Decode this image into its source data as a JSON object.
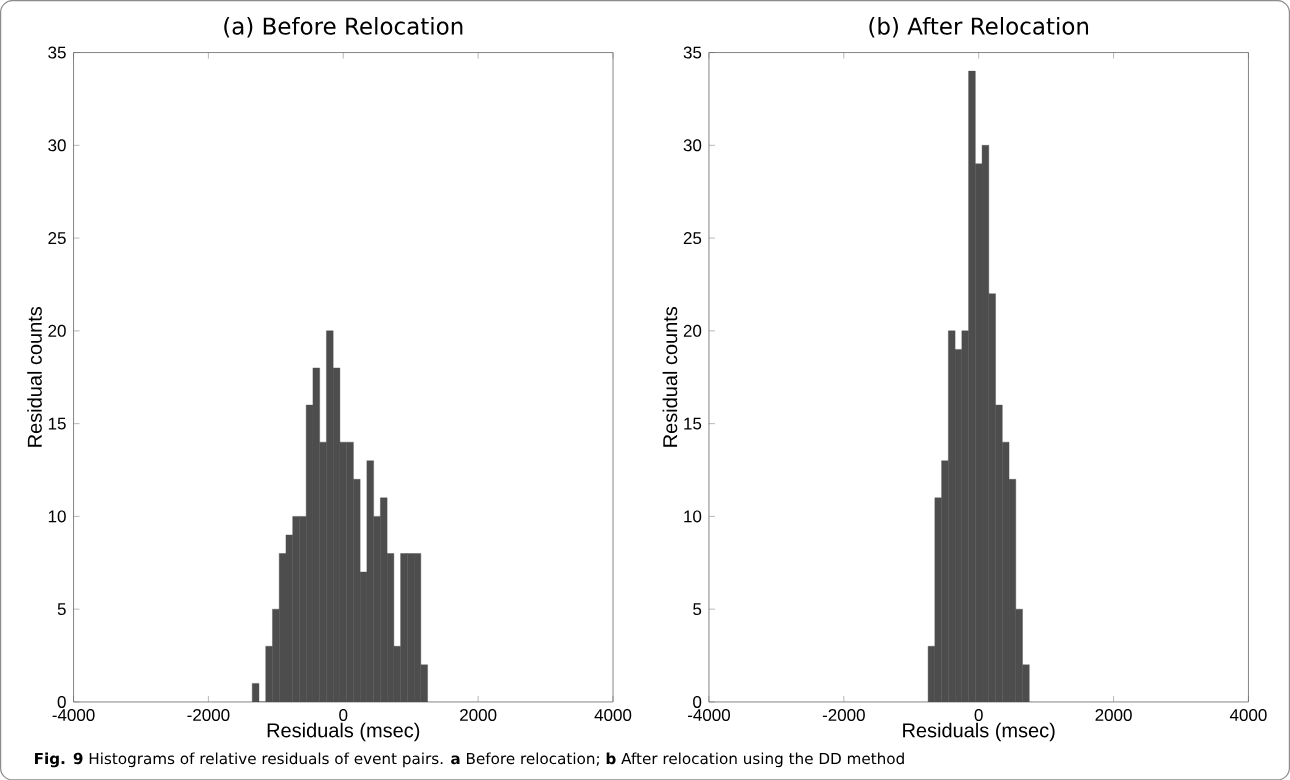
{
  "chart_data": [
    {
      "type": "histogram",
      "title": "(a) Before Relocation",
      "xlabel": "Residuals (msec)",
      "ylabel": "Residual counts",
      "color": "#4d4d4d",
      "bins": [
        -1350,
        -1250,
        -1150,
        -1050,
        -950,
        -850,
        -750,
        -650,
        -550,
        -450,
        -350,
        -250,
        -150,
        -50,
        50,
        150,
        250,
        350,
        450,
        550,
        650,
        750,
        850,
        950,
        1050,
        1150,
        1250
      ],
      "values": [
        1,
        0,
        3,
        5,
        8,
        9,
        10,
        10,
        16,
        18,
        14,
        20,
        18,
        14,
        14,
        12,
        7,
        13,
        10,
        11,
        8,
        3,
        8,
        8,
        8,
        2
      ],
      "xlim": [
        -4000,
        4000
      ],
      "ylim": [
        0,
        35
      ],
      "xticks": [
        -4000,
        -2000,
        0,
        2000,
        4000
      ],
      "yticks": [
        0,
        5,
        10,
        15,
        20,
        25,
        30,
        35
      ],
      "annotations": [
        "**Fig. 9** Histograms of relative residuals of event pairs. **a** Before relocation; **b** After relocation using the DD method"
      ]
    },
    {
      "type": "histogram",
      "title": "(b) After Relocation",
      "xlabel": "Residuals (msec)",
      "ylabel": "Residual counts",
      "color": "#4d4d4d",
      "bins": [
        -750,
        -650,
        -550,
        -450,
        -350,
        -250,
        -150,
        -50,
        50,
        150,
        250,
        350,
        450,
        550,
        650,
        750
      ],
      "values": [
        3,
        11,
        13,
        20,
        19,
        20,
        34,
        29,
        30,
        22,
        16,
        14,
        12,
        5,
        2
      ],
      "xlim": [
        -4000,
        4000
      ],
      "ylim": [
        0,
        35
      ],
      "xticks": [
        -4000,
        -2000,
        0,
        2000,
        4000
      ],
      "yticks": [
        0,
        5,
        10,
        15,
        20,
        25,
        30,
        35
      ]
    }
  ]
}
